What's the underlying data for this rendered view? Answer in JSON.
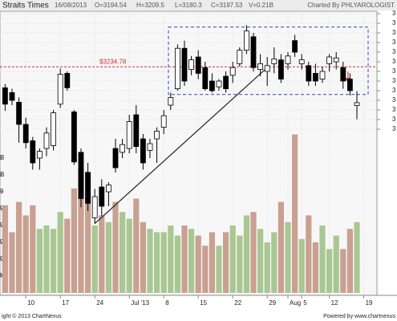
{
  "chart_data": {
    "type": "candlestick",
    "title": "Straits Times",
    "header": {
      "date": "16/08/2013",
      "fields": [
        "O=3194.54",
        "H=3209.5",
        "L=3180.3",
        "C=3197.53",
        "V=0.21B"
      ],
      "credit": "Charted By PHLYAROLOGIST"
    },
    "footer": {
      "copyright": "ight © 2013 ChartNexus",
      "powered": "Powered by www.chartnexus"
    },
    "categories": [
      null,
      null,
      null,
      "10",
      null,
      null,
      null,
      null,
      "17",
      null,
      null,
      null,
      null,
      "24",
      null,
      null,
      null,
      null,
      "Jul '13",
      null,
      null,
      null,
      null,
      "8",
      null,
      null,
      null,
      null,
      "15",
      null,
      null,
      null,
      null,
      "22",
      null,
      null,
      null,
      null,
      "29",
      null,
      null,
      "Aug",
      null,
      "5",
      null,
      null,
      null,
      "12",
      null,
      null,
      null,
      null,
      "19"
    ],
    "open": [
      3213,
      3208,
      3198,
      3175,
      3158,
      3140,
      3150,
      3153,
      3196,
      3228,
      3188,
      3146,
      3125,
      3078,
      3110,
      3105,
      3150,
      3146,
      3150,
      3185,
      3160,
      3148,
      3160,
      3172,
      3195,
      3212,
      3254,
      3232,
      3245,
      3234,
      3220,
      3214,
      3225,
      3226,
      3238,
      3252,
      3266,
      3232,
      3230,
      3238,
      3242,
      3238,
      3262,
      3238,
      3236,
      3228,
      3222,
      3238,
      3240,
      3234,
      3222,
      3194.54,
      null
    ],
    "high": [
      3217,
      3212,
      3203,
      3182,
      3162,
      3150,
      3172,
      3190,
      3233,
      3230,
      3190,
      3150,
      3135,
      3108,
      3118,
      3115,
      3160,
      3160,
      3185,
      3195,
      3165,
      3160,
      3172,
      3190,
      3208,
      3258,
      3262,
      3246,
      3252,
      3240,
      3228,
      3222,
      3230,
      3240,
      3255,
      3278,
      3270,
      3248,
      3245,
      3255,
      3248,
      3250,
      3268,
      3248,
      3240,
      3238,
      3235,
      3248,
      3250,
      3240,
      3228,
      3209.5,
      null
    ],
    "low": [
      3189,
      3195,
      3156,
      3150,
      3128,
      3128,
      3142,
      3148,
      3192,
      3210,
      3133,
      3089,
      3085,
      3072,
      3080,
      3090,
      3125,
      3140,
      3145,
      3145,
      3128,
      3140,
      3135,
      3165,
      3190,
      3210,
      3215,
      3226,
      3222,
      3210,
      3208,
      3210,
      3208,
      3218,
      3235,
      3248,
      3230,
      3225,
      3215,
      3228,
      3218,
      3232,
      3245,
      3232,
      3215,
      3215,
      3218,
      3230,
      3232,
      3212,
      3205,
      3180.3,
      null
    ],
    "close": [
      3196,
      3200,
      3175,
      3156,
      3135,
      3147,
      3166,
      3187,
      3227,
      3213,
      3136,
      3098,
      3093,
      3100,
      3090,
      3112,
      3130,
      3154,
      3178,
      3152,
      3135,
      3155,
      3168,
      3184,
      3203,
      3254,
      3220,
      3242,
      3228,
      3212,
      3210,
      3220,
      3212,
      3234,
      3252,
      3272,
      3234,
      3238,
      3236,
      3243,
      3222,
      3246,
      3250,
      3242,
      3220,
      3220,
      3230,
      3245,
      3244,
      3220,
      3210,
      3197.53,
      null
    ],
    "volume": [
      0.26,
      0.18,
      0.27,
      0.23,
      0.26,
      0.19,
      0.2,
      0.19,
      0.24,
      0.22,
      0.31,
      0.37,
      0.36,
      0.2,
      0.23,
      0.21,
      0.27,
      0.24,
      0.22,
      0.28,
      0.21,
      0.19,
      0.18,
      0.18,
      0.2,
      0.17,
      0.2,
      0.19,
      0.17,
      0.14,
      0.18,
      0.14,
      0.18,
      0.2,
      0.17,
      0.23,
      0.24,
      0.19,
      0.15,
      0.18,
      0.27,
      0.21,
      0.47,
      0.16,
      0.23,
      0.15,
      0.2,
      0.13,
      0.17,
      0.13,
      0.19,
      0.21,
      null
    ],
    "ylim": [
      3000,
      3300
    ],
    "yticks": [
      {
        "value": 3290,
        "label": "3"
      },
      {
        "value": 3280,
        "label": "3"
      },
      {
        "value": 3270,
        "label": "3"
      },
      {
        "value": 3260,
        "label": "3"
      },
      {
        "value": 3250,
        "label": "3"
      },
      {
        "value": 3240,
        "label": "3"
      },
      {
        "value": 3230,
        "label": "3"
      },
      {
        "value": 3220,
        "label": "3"
      },
      {
        "value": 3210,
        "label": "3"
      },
      {
        "value": 3200,
        "label": "3"
      },
      {
        "value": 3190,
        "label": "3"
      },
      {
        "value": 3180,
        "label": "3"
      },
      {
        "value": 3170,
        "label": "3"
      }
    ],
    "volume_ylim": [
      0,
      0.5
    ],
    "volume_ticks": [
      {
        "value": 0.4,
        "label": "B"
      },
      {
        "value": 0.35,
        "label": "B"
      },
      {
        "value": 0.3,
        "label": "9"
      },
      {
        "value": 0.25,
        "label": "9"
      },
      {
        "value": 0.2,
        "label": "9"
      },
      {
        "value": 0.15,
        "label": "9"
      },
      {
        "value": 0.1,
        "label": "9"
      },
      {
        "value": 0.05,
        "label": "M"
      }
    ],
    "price_line": {
      "value": 3234.78,
      "label": "$3234.78",
      "color": "#d83030"
    },
    "range_box": {
      "ylim": [
        3206,
        3276
      ],
      "color": "#3a3ad0"
    },
    "trendline": {
      "from": 3072,
      "to": 3234
    },
    "colors": {
      "up_volume": "#a9c792",
      "down_volume": "#c9a091",
      "down_candle": "#000000",
      "up_candle": "#ffffff",
      "arrow": "#c02020"
    },
    "grid": true
  }
}
